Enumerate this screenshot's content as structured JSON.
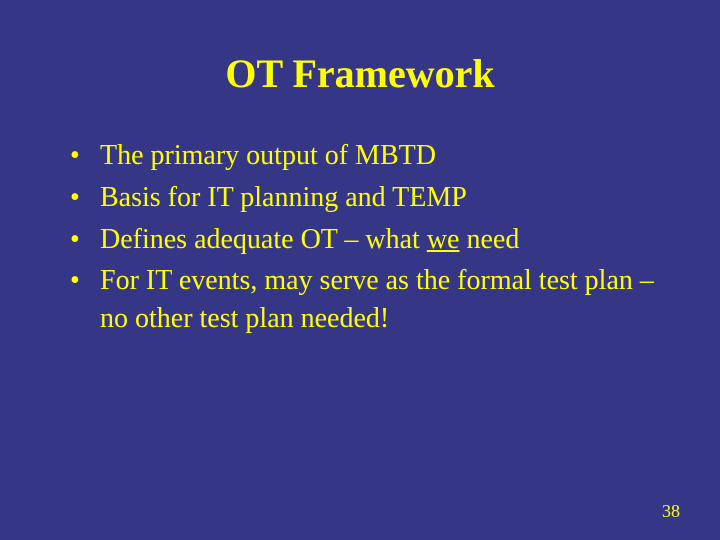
{
  "slide": {
    "background_color": "#353786",
    "title": {
      "text": "OT Framework",
      "color": "#ffff00",
      "fontsize": 40,
      "font_weight": "bold"
    },
    "bullets": {
      "color": "#ffff00",
      "fontsize": 28,
      "line_height": 1.35,
      "items": [
        {
          "text": "The primary output of MBTD"
        },
        {
          "text": "Basis for IT planning and TEMP"
        },
        {
          "text_before": "Defines adequate OT – what ",
          "underlined": "we",
          "text_after": " need"
        },
        {
          "text": "For IT events, may serve as the formal test plan –no other test plan needed!"
        }
      ]
    },
    "page_number": {
      "text": "38",
      "color": "#ffff00",
      "fontsize": 18
    }
  }
}
